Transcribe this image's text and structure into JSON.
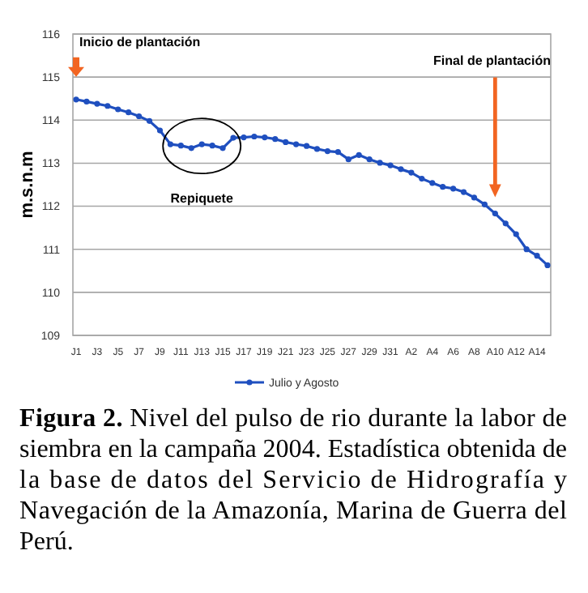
{
  "chart_data": {
    "type": "line",
    "ylabel": "m.s.n.m",
    "categories": [
      "J1",
      null,
      "J3",
      null,
      "J5",
      null,
      "J7",
      null,
      "J9",
      null,
      "J11",
      null,
      "J13",
      null,
      "J15",
      null,
      "J17",
      null,
      "J19",
      null,
      "J21",
      null,
      "J23",
      null,
      "J25",
      null,
      "J27",
      null,
      "J29",
      null,
      "J31",
      null,
      "A2",
      null,
      "A4",
      null,
      "A6",
      null,
      "A8",
      null,
      "A10",
      null,
      "A12",
      null,
      "A14",
      null
    ],
    "series": [
      {
        "name": "Julio y Agosto",
        "color": "#1f4fbf",
        "values": [
          114.48,
          114.43,
          114.38,
          114.33,
          114.25,
          114.18,
          114.09,
          113.98,
          113.76,
          113.44,
          113.41,
          113.35,
          113.44,
          113.41,
          113.35,
          113.59,
          113.6,
          113.62,
          113.6,
          113.56,
          113.49,
          113.44,
          113.4,
          113.33,
          113.28,
          113.26,
          113.09,
          113.19,
          113.09,
          113.01,
          112.95,
          112.86,
          112.78,
          112.64,
          112.54,
          112.45,
          112.41,
          112.33,
          112.2,
          112.04,
          111.83,
          111.6,
          111.35,
          111.0,
          110.85,
          110.63
        ]
      }
    ],
    "ylim": [
      109,
      116
    ],
    "yticks": [
      109,
      110,
      111,
      112,
      113,
      114,
      115,
      116
    ],
    "grid": "y",
    "legend": "bottom",
    "marker": "circle",
    "line_style": "solid",
    "annotations": [
      "Inicio de plantación",
      "Final de plantación",
      "Repiquete",
      "Figura 2. Nivel del pulso de rio durante la labor de siembra en la campaña 2004. Estadística obtenida de la base de datos del Servicio de Hidrografía y Navegación de la Amazonía, Marina de Guerra del Perú."
    ]
  }
}
